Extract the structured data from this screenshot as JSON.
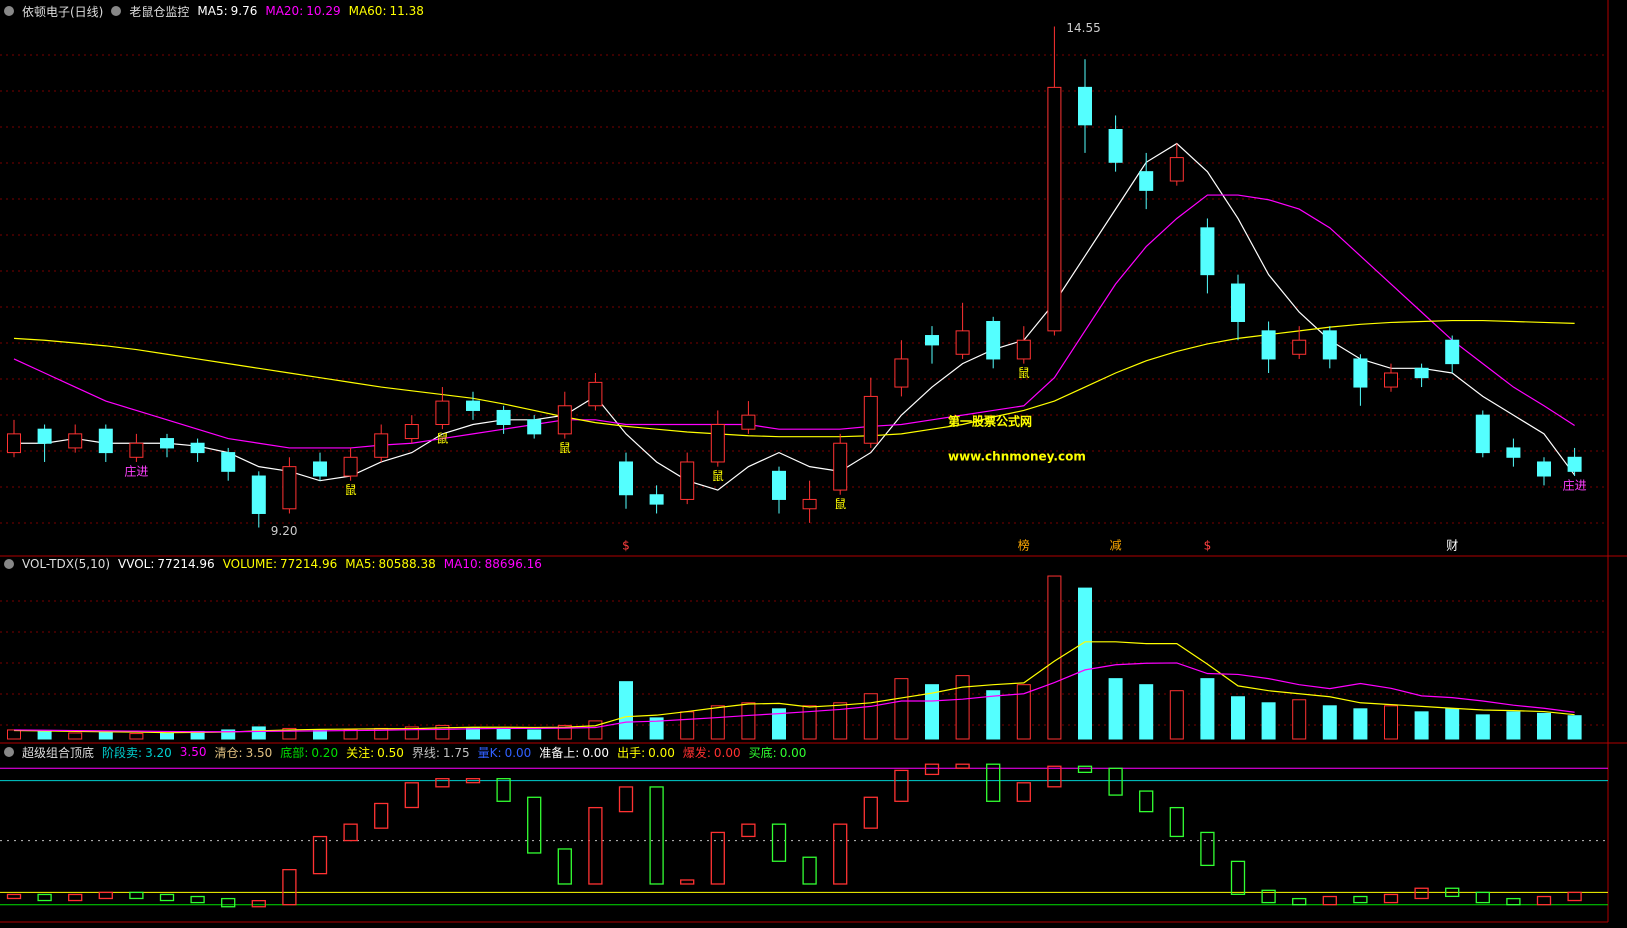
{
  "chart_data": [
    {
      "type": "candlestick",
      "title": "依顿电子(日线)",
      "subtitle": "老鼠仓监控",
      "ylim": [
        8.96,
        14.63
      ],
      "grid": true,
      "up_color": "#ff3232",
      "down_color": "#54ffff",
      "open": [
        10.0,
        10.25,
        10.05,
        10.25,
        9.95,
        10.15,
        10.1,
        10.0,
        9.75,
        9.4,
        9.9,
        9.75,
        9.95,
        10.15,
        10.3,
        10.55,
        10.45,
        10.35,
        10.2,
        10.5,
        9.9,
        9.55,
        9.5,
        9.9,
        10.25,
        9.8,
        9.4,
        9.6,
        10.1,
        10.7,
        11.25,
        11.05,
        11.4,
        11.0,
        11.3,
        13.9,
        13.45,
        13.0,
        12.9,
        12.4,
        11.8,
        11.3,
        11.05,
        11.3,
        11.0,
        10.7,
        10.9,
        11.2,
        10.4,
        10.05,
        9.9,
        9.95
      ],
      "high": [
        10.35,
        10.3,
        10.3,
        10.3,
        10.2,
        10.2,
        10.15,
        10.05,
        9.8,
        9.95,
        10.0,
        10.05,
        10.3,
        10.4,
        10.7,
        10.65,
        10.5,
        10.4,
        10.65,
        10.85,
        10.0,
        9.65,
        10.0,
        10.45,
        10.55,
        9.85,
        9.7,
        10.2,
        10.8,
        11.2,
        11.35,
        11.6,
        11.45,
        11.35,
        14.55,
        14.2,
        13.6,
        13.2,
        13.3,
        12.5,
        11.9,
        11.4,
        11.35,
        11.35,
        11.05,
        10.95,
        10.95,
        11.25,
        10.45,
        10.15,
        9.95,
        10.05
      ],
      "low": [
        9.95,
        9.9,
        10.0,
        9.9,
        9.9,
        9.95,
        9.9,
        9.7,
        9.2,
        9.35,
        9.7,
        9.7,
        9.9,
        10.1,
        10.25,
        10.35,
        10.2,
        10.15,
        10.15,
        10.45,
        9.4,
        9.35,
        9.45,
        9.85,
        10.2,
        9.35,
        9.25,
        9.55,
        10.05,
        10.6,
        10.95,
        11.0,
        10.9,
        10.95,
        11.25,
        13.2,
        13.0,
        12.6,
        12.85,
        11.7,
        11.2,
        10.85,
        11.0,
        10.9,
        10.5,
        10.65,
        10.7,
        10.85,
        9.95,
        9.85,
        9.65,
        9.75
      ],
      "close": [
        10.2,
        10.1,
        10.2,
        10.0,
        10.1,
        10.05,
        10.0,
        9.8,
        9.35,
        9.85,
        9.75,
        9.95,
        10.2,
        10.3,
        10.55,
        10.45,
        10.3,
        10.2,
        10.5,
        10.75,
        9.55,
        9.45,
        9.9,
        10.3,
        10.4,
        9.5,
        9.5,
        10.1,
        10.6,
        11.0,
        11.15,
        11.3,
        11.0,
        11.2,
        13.9,
        13.5,
        13.1,
        12.8,
        13.15,
        11.9,
        11.4,
        11.0,
        11.2,
        11.0,
        10.7,
        10.85,
        10.8,
        10.95,
        10.0,
        9.95,
        9.75,
        9.8
      ],
      "series": [
        {
          "name": "MA5",
          "color": "#ffffff",
          "value_label": "9.76",
          "values": [
            10.1,
            10.1,
            10.15,
            10.1,
            10.1,
            10.1,
            10.07,
            10.0,
            9.85,
            9.8,
            9.7,
            9.75,
            9.9,
            10.0,
            10.2,
            10.3,
            10.35,
            10.35,
            10.4,
            10.6,
            10.2,
            9.9,
            9.7,
            9.6,
            9.85,
            10.0,
            9.85,
            9.8,
            10.0,
            10.4,
            10.7,
            10.95,
            11.1,
            11.2,
            11.6,
            12.1,
            12.6,
            13.1,
            13.3,
            13.0,
            12.5,
            11.9,
            11.5,
            11.2,
            11.0,
            10.9,
            10.9,
            10.85,
            10.6,
            10.4,
            10.2,
            9.76
          ]
        },
        {
          "name": "MA20",
          "color": "#ff00ff",
          "value_label": "10.29",
          "values": [
            11.0,
            10.85,
            10.7,
            10.55,
            10.45,
            10.35,
            10.25,
            10.15,
            10.1,
            10.05,
            10.05,
            10.05,
            10.08,
            10.1,
            10.15,
            10.2,
            10.25,
            10.3,
            10.35,
            10.35,
            10.3,
            10.3,
            10.3,
            10.3,
            10.3,
            10.25,
            10.25,
            10.25,
            10.28,
            10.3,
            10.35,
            10.4,
            10.45,
            10.5,
            10.8,
            11.3,
            11.8,
            12.2,
            12.5,
            12.75,
            12.75,
            12.7,
            12.6,
            12.4,
            12.1,
            11.8,
            11.5,
            11.2,
            10.95,
            10.7,
            10.5,
            10.29
          ]
        },
        {
          "name": "MA60",
          "color": "#ffff00",
          "value_label": "11.38",
          "values": [
            11.22,
            11.2,
            11.17,
            11.14,
            11.1,
            11.05,
            11.0,
            10.95,
            10.9,
            10.85,
            10.8,
            10.75,
            10.7,
            10.66,
            10.62,
            10.58,
            10.52,
            10.45,
            10.38,
            10.32,
            10.28,
            10.25,
            10.22,
            10.2,
            10.18,
            10.17,
            10.17,
            10.17,
            10.18,
            10.2,
            10.25,
            10.3,
            10.38,
            10.45,
            10.55,
            10.7,
            10.85,
            10.98,
            11.08,
            11.16,
            11.22,
            11.26,
            11.3,
            11.34,
            11.37,
            11.39,
            11.4,
            11.41,
            11.41,
            11.4,
            11.39,
            11.38
          ]
        }
      ],
      "annotations": [
        "14.55",
        "9.20",
        "庄进",
        "庄进",
        "鼠",
        "鼠",
        "鼠",
        "鼠",
        "鼠",
        "鼠",
        "$",
        "榜",
        "减",
        "$",
        "财"
      ],
      "watermark": [
        "第一股票公式网",
        "www.chnmoney.com"
      ]
    },
    {
      "type": "bar",
      "title": "VOL-TDX(5,10)",
      "ylim": [
        0,
        560000
      ],
      "grid": true,
      "legend": [
        {
          "name": "VVOL",
          "label": "77214.96",
          "color": "#ffffff"
        },
        {
          "name": "VOLUME",
          "label": "77214.96",
          "color": "#ffff00"
        }
      ],
      "values": [
        30000,
        25000,
        20000,
        22000,
        18000,
        20000,
        25000,
        30000,
        40000,
        35000,
        28000,
        30000,
        35000,
        40000,
        45000,
        38000,
        35000,
        30000,
        45000,
        60000,
        190000,
        70000,
        90000,
        110000,
        120000,
        100000,
        110000,
        120000,
        150000,
        200000,
        180000,
        210000,
        160000,
        180000,
        540000,
        500000,
        200000,
        180000,
        160000,
        200000,
        140000,
        120000,
        130000,
        110000,
        100000,
        110000,
        90000,
        100000,
        80000,
        90000,
        85000,
        77214.96
      ],
      "series": [
        {
          "name": "MA5",
          "color": "#ffff00",
          "value_label": "80588.38",
          "values": [
            28000,
            27000,
            25000,
            24000,
            23000,
            21000,
            22000,
            23000,
            27000,
            30000,
            32000,
            33000,
            34000,
            34000,
            37000,
            39000,
            39000,
            38000,
            39000,
            44000,
            74000,
            79000,
            91000,
            104000,
            116000,
            118000,
            106000,
            112000,
            120000,
            136000,
            152000,
            172000,
            180000,
            186000,
            258000,
            322000,
            322000,
            316000,
            316000,
            248000,
            176000,
            160000,
            150000,
            140000,
            120000,
            114000,
            108000,
            102000,
            96000,
            94000,
            91000,
            80588.38
          ]
        },
        {
          "name": "MA10",
          "color": "#ff00ff",
          "value_label": "88696.16",
          "values": [
            30000,
            29000,
            28000,
            27000,
            26000,
            25000,
            24000,
            24000,
            25000,
            26000,
            27000,
            28000,
            29000,
            31000,
            32000,
            34000,
            35000,
            35000,
            36000,
            38000,
            56000,
            59000,
            65000,
            71000,
            78000,
            84000,
            91000,
            98000,
            108000,
            126000,
            126000,
            132000,
            142000,
            150000,
            187000,
            229000,
            246000,
            251000,
            252000,
            217000,
            214000,
            200000,
            180000,
            167000,
            184000,
            168000,
            143000,
            137000,
            126000,
            112000,
            102000,
            88696.16
          ]
        }
      ]
    },
    {
      "type": "step",
      "title": "超级组合顶底",
      "ylim": [
        0,
        3.7
      ],
      "up_color": "#ff3232",
      "down_color": "#32ff32",
      "legend": [
        {
          "name": "阶段卖",
          "value": 3.2,
          "label": "3.20",
          "color": "#00d0d0",
          "line": "solid"
        },
        {
          "value": 3.5,
          "label": "3.50",
          "color": "#ff00ff",
          "line": "solid"
        },
        {
          "name": "清仓",
          "value": 3.5,
          "label": "3.50",
          "color": "#e0c080"
        },
        {
          "name": "底部",
          "value": 0.2,
          "label": "0.20",
          "color": "#00e000",
          "line": "solid"
        },
        {
          "name": "关注",
          "value": 0.5,
          "label": "0.50",
          "color": "#ffff00",
          "line": "solid"
        },
        {
          "name": "界线",
          "value": 1.75,
          "label": "1.75",
          "color": "#c0c0c0",
          "line": "dotted"
        },
        {
          "name": "量K",
          "value": 0,
          "label": "0.00",
          "color": "#3060ff"
        },
        {
          "name": "准备上",
          "value": 0,
          "label": "0.00",
          "color": "#ffffff"
        },
        {
          "name": "出手",
          "value": 0,
          "label": "0.00",
          "color": "#ffff00"
        },
        {
          "name": "爆发",
          "value": 0,
          "label": "0.00",
          "color": "#ff3030"
        },
        {
          "name": "买底",
          "value": 0,
          "label": "0.00",
          "color": "#30ff30"
        }
      ],
      "values": [
        0.4,
        0.35,
        0.4,
        0.45,
        0.4,
        0.35,
        0.3,
        0.2,
        0.25,
        1.0,
        1.8,
        2.1,
        2.6,
        3.1,
        3.2,
        3.2,
        2.75,
        1.5,
        0.75,
        2.5,
        3.0,
        0.75,
        0.75,
        1.9,
        2.1,
        1.3,
        0.75,
        2.1,
        2.75,
        3.4,
        3.55,
        3.55,
        2.75,
        3.1,
        3.5,
        3.45,
        2.9,
        2.5,
        1.9,
        1.2,
        0.5,
        0.3,
        0.25,
        0.35,
        0.3,
        0.4,
        0.55,
        0.45,
        0.3,
        0.25,
        0.35,
        0.45
      ]
    }
  ]
}
